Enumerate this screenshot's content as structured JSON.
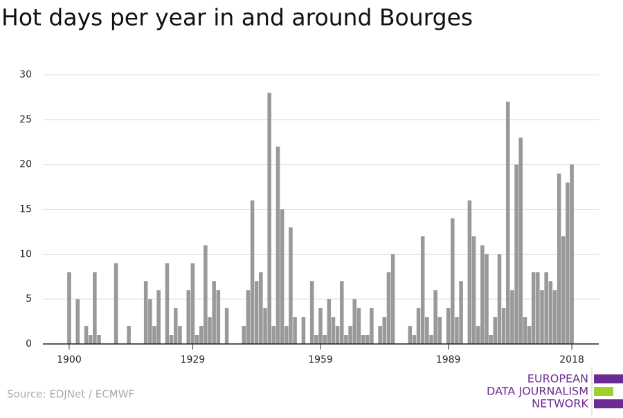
{
  "chart_data": {
    "type": "bar",
    "title": "Hot days per year in and around Bourges",
    "source": "Source: EDJNet / ECMWF",
    "logo": [
      "EUROPEAN",
      "DATA JOURNALISM",
      "NETWORK"
    ],
    "x": [
      1900,
      1901,
      1902,
      1903,
      1904,
      1905,
      1906,
      1907,
      1908,
      1909,
      1910,
      1911,
      1912,
      1913,
      1914,
      1915,
      1916,
      1917,
      1918,
      1919,
      1920,
      1921,
      1922,
      1923,
      1924,
      1925,
      1926,
      1927,
      1928,
      1929,
      1930,
      1931,
      1932,
      1933,
      1934,
      1935,
      1936,
      1937,
      1938,
      1939,
      1940,
      1941,
      1942,
      1943,
      1944,
      1945,
      1946,
      1947,
      1948,
      1949,
      1950,
      1951,
      1952,
      1953,
      1954,
      1955,
      1956,
      1957,
      1958,
      1959,
      1960,
      1961,
      1962,
      1963,
      1964,
      1965,
      1966,
      1967,
      1968,
      1969,
      1970,
      1971,
      1972,
      1973,
      1974,
      1975,
      1976,
      1977,
      1978,
      1979,
      1980,
      1981,
      1982,
      1983,
      1984,
      1985,
      1986,
      1987,
      1988,
      1989,
      1990,
      1991,
      1992,
      1993,
      1994,
      1995,
      1996,
      1997,
      1998,
      1999,
      2000,
      2001,
      2002,
      2003,
      2004,
      2005,
      2006,
      2007,
      2008,
      2009,
      2010,
      2011,
      2012,
      2013,
      2014,
      2015,
      2016,
      2017,
      2018
    ],
    "values": [
      8,
      0,
      5,
      0,
      2,
      1,
      8,
      1,
      0,
      0,
      0,
      9,
      0,
      0,
      2,
      0,
      0,
      0,
      7,
      5,
      2,
      6,
      0,
      9,
      1,
      4,
      2,
      0,
      6,
      9,
      1,
      2,
      11,
      3,
      7,
      6,
      0,
      4,
      0,
      0,
      0,
      2,
      6,
      16,
      7,
      8,
      4,
      28,
      2,
      22,
      15,
      2,
      13,
      3,
      0,
      3,
      0,
      7,
      1,
      4,
      1,
      5,
      3,
      2,
      7,
      1,
      2,
      5,
      4,
      1,
      1,
      4,
      0,
      2,
      3,
      8,
      10,
      0,
      0,
      0,
      2,
      1,
      4,
      12,
      3,
      1,
      6,
      3,
      0,
      4,
      14,
      3,
      7,
      0,
      16,
      12,
      2,
      11,
      10,
      1,
      3,
      10,
      4,
      27,
      6,
      20,
      23,
      3,
      2,
      8,
      8,
      6,
      8,
      7,
      6,
      19,
      12,
      18,
      20
    ],
    "color": "#999999",
    "xlim": [
      1894,
      2024
    ],
    "xticks": [
      1900,
      1929,
      1959,
      1989,
      2018
    ],
    "ylim": [
      0,
      30
    ],
    "yticks": [
      0,
      5,
      10,
      15,
      20,
      25,
      30
    ],
    "grid": true
  }
}
